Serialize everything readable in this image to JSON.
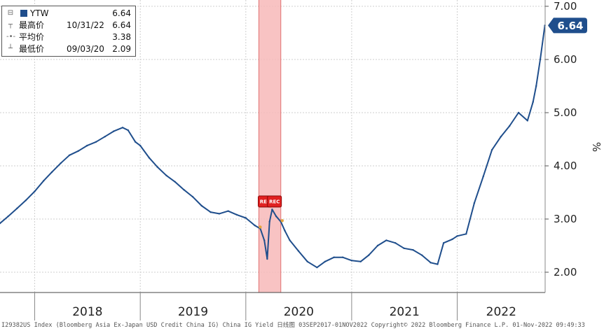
{
  "legend": {
    "series_label": "YTW",
    "series_value": "6.64",
    "high_label": "最高价",
    "high_date": "10/31/22",
    "high_value": "6.64",
    "avg_label": "平均价",
    "avg_value": "3.38",
    "low_label": "最低价",
    "low_date": "09/03/20",
    "low_value": "2.09"
  },
  "last_value_tag": "6.64",
  "recession_label": "REC",
  "footer_text": "I29382US Index (Bloomberg Asia Ex-Japan USD Credit China IG) China IG Yield  日线图 03SEP2017-01NOV2022  Copyright© 2022 Bloomberg Finance L.P.  01-Nov-2022 09:49:33",
  "colors": {
    "line": "#1f4e8c",
    "recession_band": "#f7b9b9",
    "rec_badge": "#e02020",
    "tag": "#1f4e8c"
  },
  "chart_data": {
    "type": "line",
    "unit_label": "%",
    "y_ticks": [
      "7.00",
      "6.00",
      "5.00",
      "4.00",
      "3.00",
      "2.00"
    ],
    "ylim": [
      1.7,
      7.0
    ],
    "x_axis": {
      "start": "2017-09-03",
      "end": "2022-11-01",
      "year_labels": [
        "2018",
        "2019",
        "2020",
        "2021",
        "2022"
      ]
    },
    "recession": {
      "start": "2020-02-15",
      "end": "2020-05-01",
      "label": "REC"
    },
    "grid": true,
    "legend_position": "top-left",
    "series": [
      {
        "name": "YTW",
        "x": [
          "2017-09-03",
          "2017-10-01",
          "2017-11-01",
          "2017-12-01",
          "2018-01-01",
          "2018-02-01",
          "2018-03-01",
          "2018-04-01",
          "2018-05-01",
          "2018-06-01",
          "2018-07-01",
          "2018-08-01",
          "2018-09-01",
          "2018-10-01",
          "2018-11-01",
          "2018-11-20",
          "2018-12-15",
          "2019-01-01",
          "2019-02-01",
          "2019-03-01",
          "2019-04-01",
          "2019-05-01",
          "2019-06-01",
          "2019-07-01",
          "2019-08-01",
          "2019-09-01",
          "2019-10-01",
          "2019-11-01",
          "2019-12-01",
          "2020-01-01",
          "2020-02-01",
          "2020-02-20",
          "2020-03-05",
          "2020-03-15",
          "2020-03-23",
          "2020-04-01",
          "2020-04-15",
          "2020-05-01",
          "2020-05-15",
          "2020-06-01",
          "2020-07-01",
          "2020-08-01",
          "2020-09-03",
          "2020-10-01",
          "2020-11-01",
          "2020-12-01",
          "2021-01-01",
          "2021-02-01",
          "2021-03-01",
          "2021-04-01",
          "2021-05-01",
          "2021-06-01",
          "2021-07-01",
          "2021-08-01",
          "2021-09-01",
          "2021-10-01",
          "2021-10-25",
          "2021-11-15",
          "2021-12-15",
          "2022-01-01",
          "2022-02-01",
          "2022-03-01",
          "2022-04-01",
          "2022-05-01",
          "2022-06-01",
          "2022-07-01",
          "2022-08-01",
          "2022-09-01",
          "2022-09-20",
          "2022-10-01",
          "2022-10-15",
          "2022-10-31"
        ],
        "values": [
          2.92,
          3.05,
          3.2,
          3.35,
          3.52,
          3.72,
          3.88,
          4.05,
          4.2,
          4.28,
          4.38,
          4.45,
          4.55,
          4.65,
          4.72,
          4.67,
          4.45,
          4.38,
          4.15,
          3.98,
          3.82,
          3.7,
          3.55,
          3.42,
          3.25,
          3.13,
          3.1,
          3.15,
          3.08,
          3.02,
          2.88,
          2.82,
          2.6,
          2.25,
          2.95,
          3.18,
          3.05,
          2.95,
          2.78,
          2.6,
          2.4,
          2.2,
          2.09,
          2.2,
          2.28,
          2.28,
          2.22,
          2.2,
          2.32,
          2.5,
          2.6,
          2.55,
          2.45,
          2.42,
          2.32,
          2.18,
          2.15,
          2.55,
          2.62,
          2.68,
          2.72,
          3.3,
          3.8,
          4.3,
          4.55,
          4.75,
          5.0,
          4.85,
          5.2,
          5.5,
          6.0,
          6.64
        ]
      }
    ]
  }
}
